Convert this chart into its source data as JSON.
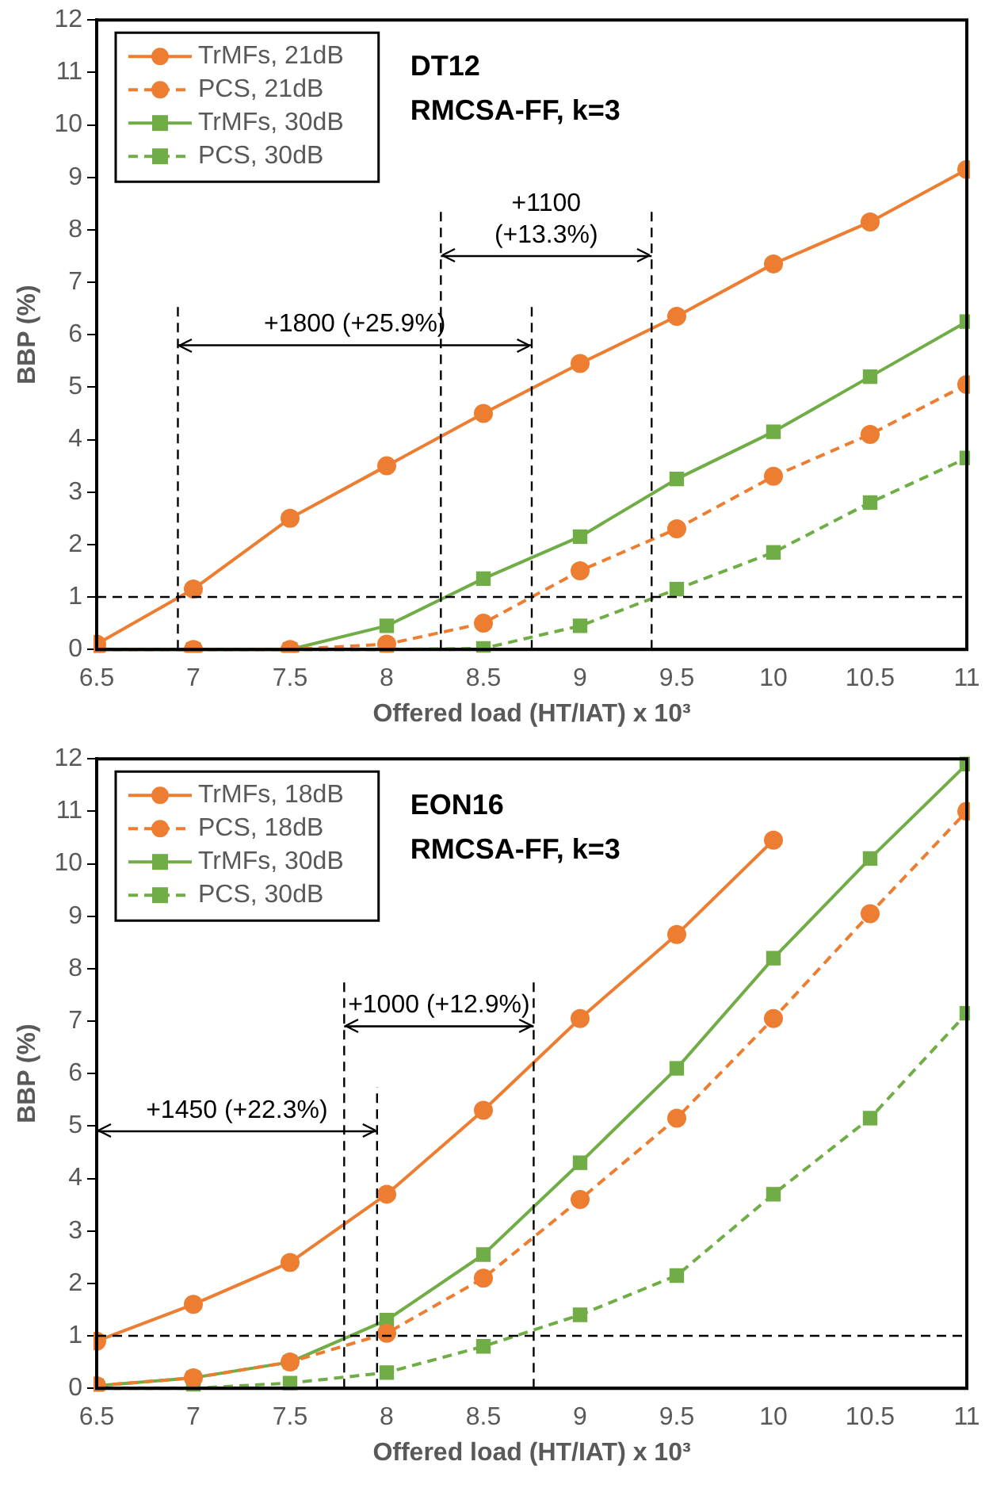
{
  "chart_data": [
    {
      "type": "line",
      "title": "DT12",
      "subtitle": "RMCSA-FF, k=3",
      "xlabel": "Offered load (HT/IAT) x 10³",
      "ylabel": "BBP (%)",
      "x": [
        6.5,
        7,
        7.5,
        8,
        8.5,
        9,
        9.5,
        10,
        10.5,
        11
      ],
      "xlim": [
        6.5,
        11
      ],
      "xticks": [
        6.5,
        7,
        7.5,
        8,
        8.5,
        9,
        9.5,
        10,
        10.5,
        11
      ],
      "ylim": [
        0,
        12
      ],
      "yticks": [
        0,
        1,
        2,
        3,
        4,
        5,
        6,
        7,
        8,
        9,
        10,
        11,
        12
      ],
      "grid": false,
      "legend": "top left",
      "series": [
        {
          "name": "TrMFs, 21dB",
          "color": "#ed7d31",
          "marker": "circle",
          "line_style": "solid",
          "values": [
            0.1,
            1.15,
            2.5,
            3.5,
            4.5,
            5.45,
            6.35,
            7.35,
            8.15,
            9.15
          ]
        },
        {
          "name": "PCS, 21dB",
          "color": "#ed7d31",
          "marker": "circle",
          "line_style": "dashed",
          "values": [
            0,
            0,
            0,
            0.1,
            0.5,
            1.5,
            2.3,
            3.3,
            4.1,
            5.05
          ]
        },
        {
          "name": "TrMFs, 30dB",
          "color": "#70ad47",
          "marker": "square",
          "line_style": "solid",
          "values": [
            0,
            0,
            0,
            0.45,
            1.35,
            2.15,
            3.25,
            4.15,
            5.2,
            6.25
          ]
        },
        {
          "name": "PCS, 30dB",
          "color": "#70ad47",
          "marker": "square",
          "line_style": "dashed",
          "values": [
            0,
            0,
            0,
            0,
            0.02,
            0.45,
            1.15,
            1.85,
            2.8,
            3.65
          ]
        },
        {
          "color": "#000000",
          "marker": "none",
          "line_style": "solid",
          "x": [
            6.92,
            8.75
          ],
          "values": [
            5.8,
            5.8
          ]
        },
        {
          "color": "#000000",
          "marker": "none",
          "line_style": "solid",
          "x": [
            8.28,
            9.37
          ],
          "values": [
            7.5,
            7.5
          ]
        }
      ],
      "ref_lines": [
        {
          "axis": "y",
          "value": 1,
          "line_style": "dashed"
        },
        {
          "axis": "x",
          "value": 6.92,
          "line_style": "dashed"
        },
        {
          "axis": "x",
          "value": 8.75,
          "line_style": "dashed"
        },
        {
          "axis": "x",
          "value": 8.28,
          "line_style": "dashed"
        },
        {
          "axis": "x",
          "value": 9.37,
          "line_style": "dashed"
        }
      ],
      "annotations": [
        "+1800 (+25.9%)",
        "+1100\n(+13.3%)"
      ]
    },
    {
      "type": "line",
      "title": "EON16",
      "subtitle": "RMCSA-FF, k=3",
      "xlabel": "Offered load (HT/IAT) x 10³",
      "ylabel": "BBP (%)",
      "x": [
        6.5,
        7,
        7.5,
        8,
        8.5,
        9,
        9.5,
        10,
        10.5,
        11
      ],
      "xlim": [
        6.5,
        11
      ],
      "xticks": [
        6.5,
        7,
        7.5,
        8,
        8.5,
        9,
        9.5,
        10,
        10.5,
        11
      ],
      "ylim": [
        0,
        12
      ],
      "yticks": [
        0,
        1,
        2,
        3,
        4,
        5,
        6,
        7,
        8,
        9,
        10,
        11,
        12
      ],
      "grid": false,
      "legend": "top left",
      "series": [
        {
          "name": "TrMFs, 18dB",
          "color": "#ed7d31",
          "marker": "circle",
          "line_style": "solid",
          "values": [
            0.9,
            1.6,
            2.4,
            3.7,
            5.3,
            7.05,
            8.65,
            10.45,
            null,
            null
          ]
        },
        {
          "name": "PCS, 18dB",
          "color": "#ed7d31",
          "marker": "circle",
          "line_style": "dashed",
          "values": [
            0.05,
            0.2,
            0.5,
            1.05,
            2.1,
            3.6,
            5.15,
            7.05,
            9.05,
            11.0
          ]
        },
        {
          "name": "TrMFs, 30dB",
          "color": "#70ad47",
          "marker": "square",
          "line_style": "solid",
          "values": [
            0.05,
            0.2,
            0.5,
            1.3,
            2.55,
            4.3,
            6.1,
            8.2,
            10.1,
            11.9
          ]
        },
        {
          "name": "PCS, 30dB",
          "color": "#70ad47",
          "marker": "square",
          "line_style": "dashed",
          "values": [
            0,
            0,
            0.1,
            0.3,
            0.8,
            1.4,
            2.15,
            3.7,
            5.15,
            7.15
          ]
        },
        {
          "color": "#000000",
          "marker": "none",
          "line_style": "solid",
          "x": [
            6.5,
            7.95
          ],
          "values": [
            4.9,
            4.9
          ]
        },
        {
          "color": "#000000",
          "marker": "none",
          "line_style": "solid",
          "x": [
            7.78,
            8.76
          ],
          "values": [
            6.9,
            6.9
          ]
        }
      ],
      "ref_lines": [
        {
          "axis": "y",
          "value": 1,
          "line_style": "dashed"
        },
        {
          "axis": "x",
          "value": 7.95,
          "line_style": "dashed"
        },
        {
          "axis": "x",
          "value": 7.78,
          "line_style": "dashed"
        },
        {
          "axis": "x",
          "value": 8.76,
          "line_style": "dashed"
        }
      ],
      "annotations": [
        "+1450 (+22.3%)",
        "+1000 (+12.9%)"
      ]
    }
  ]
}
